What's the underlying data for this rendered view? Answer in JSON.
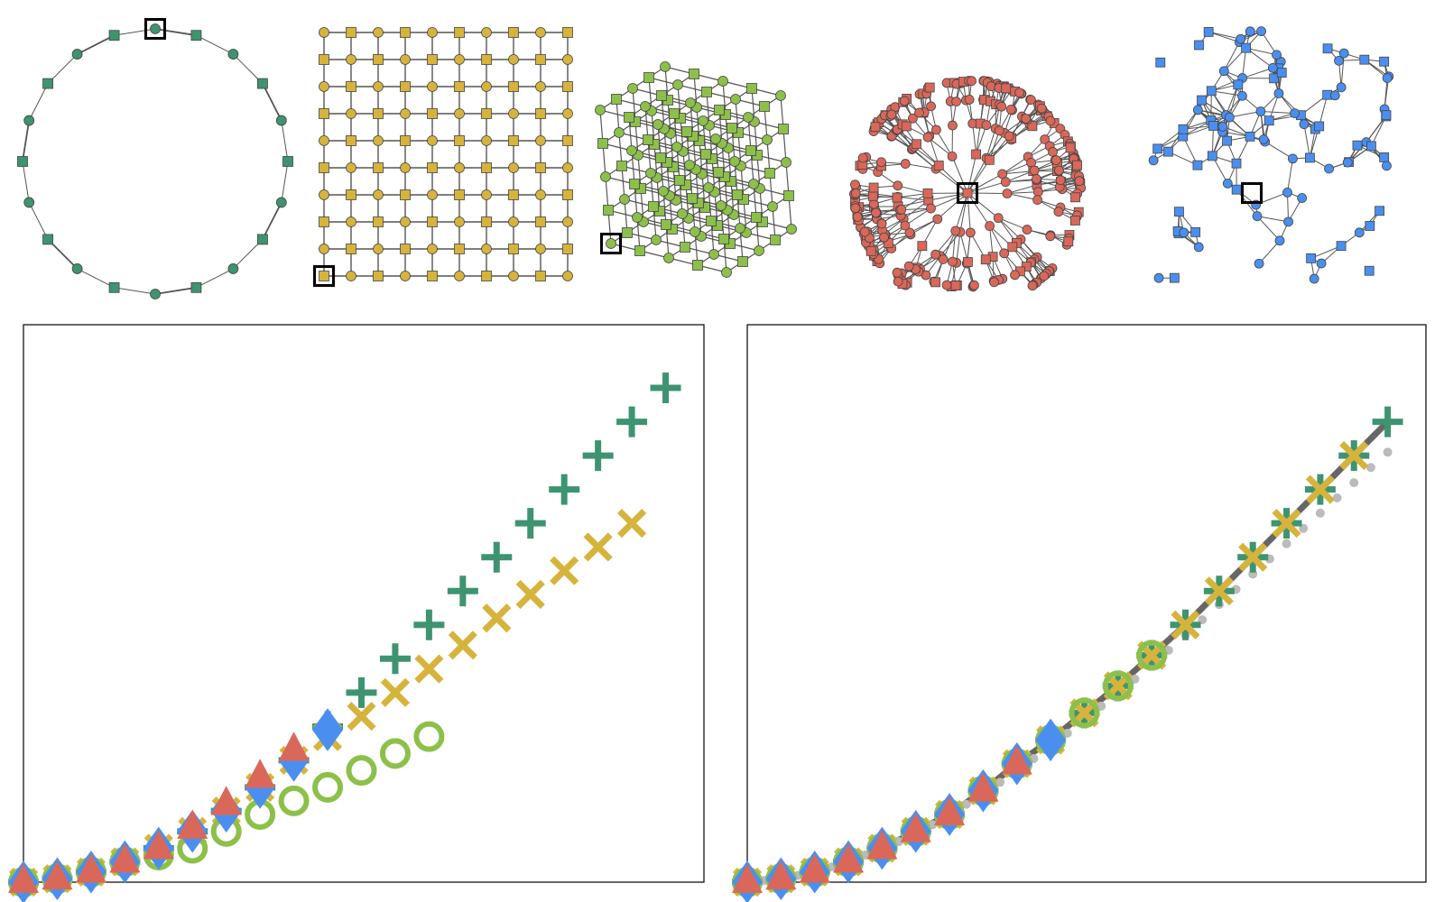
{
  "colors": {
    "teal": "#3E9470",
    "gold": "#D6B43C",
    "lime": "#8DC04A",
    "salmon": "#D9685A",
    "blue": "#4A8FF0",
    "edge": "#555555",
    "frame": "#000000",
    "grey": "#BBBBBB",
    "dark": "#666666"
  },
  "graphs": [
    {
      "name": "ring-graph",
      "nodes": 20,
      "color": "teal"
    },
    {
      "name": "grid-graph",
      "rows": 10,
      "cols": 10,
      "color": "gold"
    },
    {
      "name": "cube-lattice-graph",
      "size": 5,
      "color": "lime"
    },
    {
      "name": "tree-graph",
      "color": "salmon"
    },
    {
      "name": "random-geometric-graph",
      "color": "blue"
    }
  ],
  "chart_data": [
    {
      "type": "scatter",
      "title": "",
      "xlabel": "",
      "ylabel": "",
      "series": [
        {
          "color": "teal",
          "marker": "plus",
          "x": [
            0,
            1,
            2,
            3,
            4,
            5,
            6,
            7,
            8,
            9,
            10,
            11,
            12,
            13,
            14,
            15,
            16,
            17,
            18,
            19
          ],
          "y": [
            0,
            0.1,
            0.3,
            0.6,
            1.0,
            1.5,
            2.1,
            2.8,
            3.6,
            4.6,
            5.6,
            6.6,
            7.6,
            8.6,
            9.6,
            10.6,
            11.6,
            12.6,
            13.6,
            14.6
          ]
        },
        {
          "color": "gold",
          "marker": "x",
          "x": [
            0,
            1,
            2,
            3,
            4,
            5,
            6,
            7,
            8,
            9,
            10,
            11,
            12,
            13,
            14,
            15,
            16,
            17,
            18
          ],
          "y": [
            0,
            0.1,
            0.3,
            0.6,
            1.0,
            1.5,
            2.1,
            2.8,
            3.6,
            4.3,
            4.9,
            5.6,
            6.3,
            7.0,
            7.8,
            8.5,
            9.2,
            9.9,
            10.6
          ]
        },
        {
          "color": "lime",
          "marker": "ring",
          "x": [
            0,
            1,
            2,
            3,
            4,
            5,
            6,
            7,
            8,
            9,
            10,
            11,
            12
          ],
          "y": [
            0,
            0.1,
            0.3,
            0.6,
            0.8,
            1.0,
            1.5,
            2.0,
            2.4,
            2.8,
            3.3,
            3.8,
            4.3
          ]
        },
        {
          "color": "blue",
          "marker": "diamond",
          "x": [
            0,
            1,
            2,
            3,
            4,
            5,
            6,
            7,
            8,
            9
          ],
          "y": [
            0,
            0.1,
            0.3,
            0.6,
            1.0,
            1.5,
            2.1,
            2.8,
            3.6,
            4.5
          ]
        },
        {
          "color": "salmon",
          "marker": "triangle",
          "x": [
            0,
            1,
            2,
            3,
            4,
            5,
            6,
            7,
            8
          ],
          "y": [
            0,
            0.1,
            0.3,
            0.6,
            1.0,
            1.6,
            2.3,
            3.1,
            3.9
          ]
        }
      ]
    },
    {
      "type": "scatter",
      "title": "",
      "xlabel": "",
      "ylabel": "",
      "series": [
        {
          "color": "dark",
          "marker": "line",
          "x": [
            0,
            1,
            2,
            3,
            4,
            5,
            6,
            7,
            8,
            9,
            10,
            11,
            12,
            13,
            14,
            15,
            16,
            17,
            18,
            19
          ],
          "y": [
            0,
            0.1,
            0.3,
            0.6,
            1.0,
            1.5,
            2.0,
            2.7,
            3.5,
            4.2,
            5.0,
            5.8,
            6.7,
            7.6,
            8.6,
            9.6,
            10.6,
            11.6,
            12.6,
            13.6
          ]
        },
        {
          "color": "grey",
          "marker": "dot",
          "x": [
            0,
            0.5,
            1,
            1.5,
            2,
            2.5,
            3,
            3.5,
            4,
            4.5,
            5,
            5.5,
            6,
            6.5,
            7,
            7.5,
            8,
            8.5,
            9,
            9.5,
            10,
            10.5,
            11,
            11.5,
            12,
            12.5,
            13,
            13.5,
            14,
            14.5,
            15,
            15.5,
            16,
            16.5,
            17,
            17.5,
            18,
            18.5,
            19
          ],
          "y": [
            0,
            0.05,
            0.1,
            0.2,
            0.3,
            0.45,
            0.6,
            0.8,
            1.0,
            1.2,
            1.45,
            1.7,
            2.0,
            2.3,
            2.6,
            2.95,
            3.3,
            3.65,
            4.0,
            4.4,
            4.8,
            5.2,
            5.6,
            6.0,
            6.4,
            6.85,
            7.3,
            7.75,
            8.2,
            8.65,
            9.1,
            9.55,
            10.0,
            10.45,
            10.9,
            11.35,
            11.8,
            12.25,
            12.7
          ]
        },
        {
          "color": "teal",
          "marker": "plus",
          "x": [
            0,
            1,
            2,
            3,
            4,
            5,
            6,
            7,
            8,
            9,
            10,
            11,
            12,
            13,
            14,
            15,
            16,
            17,
            18,
            19
          ],
          "y": [
            0,
            0.1,
            0.3,
            0.6,
            1.0,
            1.5,
            2.0,
            2.7,
            3.5,
            4.2,
            5.0,
            5.8,
            6.7,
            7.6,
            8.6,
            9.6,
            10.6,
            11.6,
            12.6,
            13.6
          ]
        },
        {
          "color": "gold",
          "marker": "x",
          "x": [
            0,
            1,
            2,
            3,
            4,
            5,
            6,
            7,
            8,
            9,
            10,
            11,
            12,
            13,
            14,
            15,
            16,
            17,
            18
          ],
          "y": [
            0,
            0.1,
            0.3,
            0.6,
            1.0,
            1.5,
            2.0,
            2.7,
            3.5,
            4.2,
            5.0,
            5.8,
            6.7,
            7.6,
            8.6,
            9.6,
            10.6,
            11.6,
            12.6
          ]
        },
        {
          "color": "lime",
          "marker": "ring",
          "x": [
            0,
            1,
            2,
            3,
            4,
            5,
            6,
            7,
            8,
            9,
            10,
            11,
            12
          ],
          "y": [
            0,
            0.1,
            0.3,
            0.6,
            1.0,
            1.5,
            2.0,
            2.7,
            3.5,
            4.2,
            5.0,
            5.8,
            6.7
          ]
        },
        {
          "color": "blue",
          "marker": "diamond",
          "x": [
            0,
            1,
            2,
            3,
            4,
            5,
            6,
            7,
            8,
            9
          ],
          "y": [
            0,
            0.1,
            0.3,
            0.6,
            1.0,
            1.5,
            2.0,
            2.7,
            3.5,
            4.2
          ]
        },
        {
          "color": "salmon",
          "marker": "triangle",
          "x": [
            0,
            1,
            2,
            3,
            4,
            5,
            6,
            7,
            8
          ],
          "y": [
            0,
            0.1,
            0.3,
            0.6,
            1.0,
            1.5,
            2.0,
            2.7,
            3.5
          ]
        }
      ]
    }
  ]
}
